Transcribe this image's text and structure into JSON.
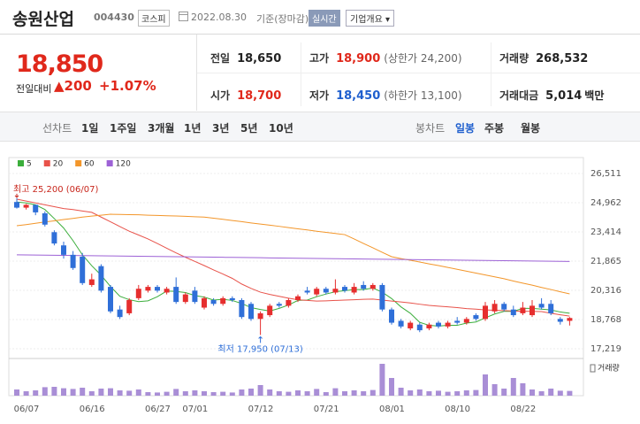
{
  "header": {
    "name": "송원산업",
    "code": "004430",
    "market": "코스피",
    "date": "2022.08.30",
    "basis": "기준(장마감)",
    "realtime": "실시간",
    "company": "기업개요 ▾"
  },
  "summary": {
    "price": "18,850",
    "change_label": "전일대비",
    "change": "▲200",
    "rate": "+1.07%"
  },
  "stats": [
    {
      "label": "전일",
      "value": "18,650"
    },
    {
      "label": "고가",
      "value": "18,900",
      "note": "(상한가 24,200)",
      "color": "#e0281b"
    },
    {
      "label": "거래량",
      "value": "268,532"
    },
    {
      "label": "시가",
      "value": "18,700",
      "color": "#e0281b"
    },
    {
      "label": "저가",
      "value": "18,450",
      "note": "(하한가 13,100)",
      "color": "#1f5fce"
    },
    {
      "label": "거래대금",
      "value": "5,014",
      "unit": "백만"
    }
  ],
  "tabs": {
    "line_label": "선차트",
    "periods": [
      "1일",
      "1주일",
      "3개월",
      "1년",
      "3년",
      "5년",
      "10년"
    ],
    "candle_label": "봉차트",
    "candles": [
      "일봉",
      "주봉",
      "월봉"
    ],
    "candle_active": 0
  },
  "chart_data": {
    "type": "candlestick",
    "categories": [
      "06/07",
      null,
      null,
      null,
      null,
      null,
      null,
      "06/16",
      null,
      null,
      null,
      null,
      null,
      null,
      "06/27",
      null,
      null,
      null,
      "07/01",
      null,
      null,
      null,
      null,
      null,
      null,
      "07/12",
      null,
      null,
      null,
      null,
      null,
      null,
      "07/21",
      null,
      null,
      null,
      null,
      null,
      null,
      "08/01",
      null,
      null,
      null,
      null,
      null,
      null,
      "08/10",
      null,
      null,
      null,
      null,
      null,
      null,
      "08/22",
      null,
      null,
      null,
      null,
      null,
      null
    ],
    "open": [
      25000,
      24700,
      24850,
      24400,
      23400,
      22700,
      22200,
      22100,
      20600,
      21600,
      20500,
      19300,
      19100,
      19900,
      20300,
      20500,
      20200,
      20500,
      19700,
      20300,
      19400,
      19800,
      19600,
      19900,
      19800,
      19600,
      18800,
      19000,
      19600,
      19500,
      19800,
      20300,
      20100,
      20400,
      20200,
      20500,
      20200,
      20600,
      20400,
      20600,
      19300,
      18700,
      18300,
      18500,
      18300,
      18600,
      18400,
      18700,
      18600,
      19000,
      18800,
      19200,
      19600,
      19300,
      19100,
      19000,
      19600,
      19600,
      18800,
      18700
    ],
    "high": [
      25200,
      24900,
      24850,
      24500,
      23500,
      22900,
      22400,
      22300,
      21200,
      21700,
      20600,
      19500,
      19900,
      20600,
      20600,
      20600,
      20500,
      21000,
      20200,
      20500,
      20000,
      19900,
      20000,
      20000,
      19900,
      19700,
      19200,
      19600,
      19700,
      19900,
      20100,
      20500,
      20500,
      20500,
      20900,
      20600,
      20700,
      20800,
      20700,
      20700,
      19400,
      18800,
      18700,
      18600,
      18600,
      18700,
      18700,
      18900,
      18900,
      19100,
      19700,
      19800,
      19700,
      19500,
      19700,
      19800,
      19900,
      19800,
      18900,
      18900
    ],
    "low": [
      24650,
      24600,
      24300,
      23700,
      22700,
      22000,
      21400,
      20600,
      20500,
      20200,
      19100,
      18800,
      19000,
      19800,
      20200,
      20200,
      20100,
      19600,
      19600,
      19600,
      19300,
      19500,
      19500,
      19700,
      18800,
      18700,
      17950,
      18900,
      19400,
      19400,
      19700,
      20100,
      20000,
      20100,
      20100,
      20200,
      20100,
      20300,
      20300,
      19200,
      18500,
      18300,
      18200,
      18100,
      18200,
      18300,
      18300,
      18500,
      18500,
      18700,
      18700,
      19100,
      19200,
      18900,
      19000,
      18900,
      19300,
      19000,
      18500,
      18450
    ],
    "close": [
      24700,
      24850,
      24450,
      23800,
      22800,
      22200,
      21500,
      20700,
      20900,
      20300,
      19200,
      18900,
      19800,
      20400,
      20500,
      20300,
      20400,
      19700,
      20100,
      19700,
      19900,
      19600,
      19900,
      19800,
      18900,
      18800,
      19100,
      19500,
      19500,
      19800,
      20000,
      20200,
      20400,
      20200,
      20400,
      20300,
      20500,
      20400,
      20600,
      19300,
      18600,
      18400,
      18600,
      18200,
      18500,
      18400,
      18600,
      18600,
      18800,
      18800,
      19500,
      19600,
      19300,
      19000,
      19400,
      19500,
      19400,
      19100,
      18650,
      18850
    ],
    "volume": [
      350000,
      250000,
      300000,
      480000,
      500000,
      420000,
      380000,
      450000,
      250000,
      400000,
      420000,
      300000,
      280000,
      350000,
      200000,
      180000,
      220000,
      380000,
      250000,
      300000,
      250000,
      200000,
      220000,
      180000,
      350000,
      400000,
      600000,
      350000,
      250000,
      220000,
      300000,
      250000,
      380000,
      200000,
      420000,
      250000,
      300000,
      250000,
      320000,
      1800000,
      1000000,
      450000,
      300000,
      350000,
      250000,
      280000,
      220000,
      250000,
      300000,
      320000,
      1200000,
      650000,
      400000,
      1000000,
      700000,
      350000,
      250000,
      400000,
      280000,
      268532
    ],
    "volume_ylim": [
      0,
      2000000
    ],
    "volume_label": "거래량",
    "volume_color": "#a98ed6",
    "up_color": "#e62e2e",
    "down_color": "#2f6fd8",
    "series": [
      {
        "name": "5",
        "color": "#3cae3c",
        "values": [
          25000,
          24950,
          24850,
          24600,
          24120,
          23620,
          22950,
          22200,
          21620,
          21120,
          20520,
          20000,
          19820,
          19720,
          19760,
          19980,
          20280,
          20260,
          20200,
          20040,
          19960,
          19800,
          19840,
          19780,
          19620,
          19400,
          19300,
          19220,
          19360,
          19540,
          19780,
          19800,
          19980,
          20120,
          20240,
          20300,
          20360,
          20360,
          20440,
          20220,
          19880,
          19440,
          19100,
          18620,
          18460,
          18420,
          18460,
          18460,
          18580,
          18640,
          18860,
          19060,
          19200,
          19200,
          19360,
          19360,
          19320,
          19280,
          19170,
          19100
        ]
      },
      {
        "name": "20",
        "color": "#e8524a",
        "values": [
          25150,
          25050,
          24950,
          24850,
          24750,
          24650,
          24600,
          24520,
          24450,
          24200,
          23950,
          23700,
          23450,
          23250,
          23040,
          22800,
          22550,
          22300,
          22070,
          21850,
          21630,
          21400,
          21180,
          20950,
          20650,
          20420,
          20220,
          20100,
          20000,
          19900,
          19820,
          19780,
          19750,
          19760,
          19780,
          19800,
          19820,
          19840,
          19850,
          19800,
          19750,
          19700,
          19650,
          19580,
          19520,
          19480,
          19440,
          19400,
          19350,
          19320,
          19280,
          19260,
          19240,
          19220,
          19210,
          19200,
          19190,
          19100,
          19020,
          18950
        ]
      },
      {
        "name": "60",
        "color": "#f3962a",
        "values": [
          23740,
          23800,
          23870,
          23940,
          24000,
          24070,
          24130,
          24200,
          24250,
          24300,
          24350,
          24340,
          24330,
          24320,
          24300,
          24290,
          24270,
          24260,
          24240,
          24220,
          24200,
          24140,
          24080,
          24020,
          23960,
          23890,
          23830,
          23770,
          23710,
          23640,
          23580,
          23520,
          23450,
          23390,
          23330,
          23270,
          23040,
          22800,
          22570,
          22330,
          22100,
          22000,
          21910,
          21820,
          21720,
          21630,
          21530,
          21430,
          21330,
          21230,
          21130,
          21030,
          20930,
          20810,
          20700,
          20590,
          20470,
          20360,
          20240,
          20130
        ]
      },
      {
        "name": "120",
        "color": "#9d62d6",
        "values": [
          22200,
          22194,
          22188,
          22182,
          22176,
          22170,
          22164,
          22158,
          22152,
          22146,
          22140,
          22134,
          22128,
          22122,
          22116,
          22110,
          22104,
          22098,
          22092,
          22086,
          22080,
          22074,
          22068,
          22062,
          22056,
          22050,
          22044,
          22038,
          22032,
          22026,
          22020,
          22014,
          22008,
          22002,
          21996,
          21990,
          21984,
          21978,
          21972,
          21966,
          21960,
          21954,
          21948,
          21942,
          21936,
          21930,
          21924,
          21918,
          21912,
          21906,
          21900,
          21894,
          21888,
          21882,
          21876,
          21870,
          21864,
          21858,
          21852,
          21846
        ]
      }
    ],
    "ylim": [
      17219,
      26511
    ],
    "yticks": [
      {
        "value": 26511,
        "label": "26,511"
      },
      {
        "value": 24962,
        "label": "24,962"
      },
      {
        "value": 23414,
        "label": "23,414"
      },
      {
        "value": 21865,
        "label": "21,865"
      },
      {
        "value": 20316,
        "label": "20,316"
      },
      {
        "value": 18768,
        "label": "18,768"
      },
      {
        "value": 17219,
        "label": "17,219"
      }
    ],
    "grid": true,
    "high_label": "최고 25,200 (06/07)",
    "low_label": "최저 17,950 (07/13)",
    "annotation_color_high": "#c8261c",
    "annotation_color_low": "#2f6fd8"
  }
}
